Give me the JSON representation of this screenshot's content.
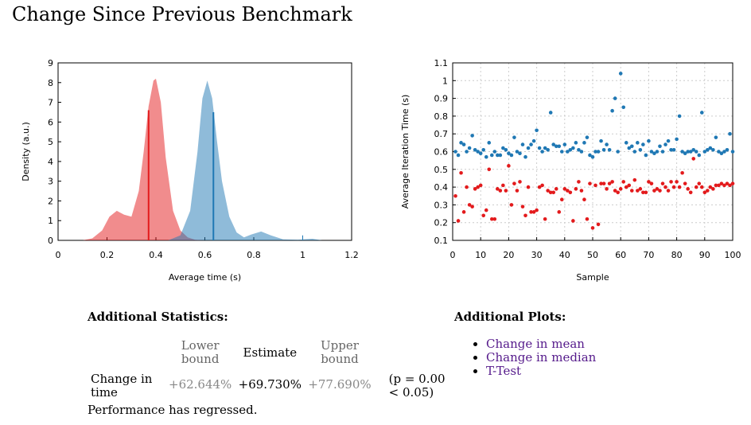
{
  "page": {
    "title": "Change Since Previous Benchmark"
  },
  "chart_data": [
    {
      "type": "area",
      "xlabel": "Average time (s)",
      "ylabel": "Density (a.u.)",
      "xlim": [
        0,
        1.2
      ],
      "ylim": [
        0,
        9
      ],
      "xticks": [
        "0",
        "0.2",
        "0.4",
        "0.6",
        "0.8",
        "1",
        "1.2"
      ],
      "yticks": [
        "0",
        "1",
        "2",
        "3",
        "4",
        "5",
        "6",
        "7",
        "8",
        "9"
      ],
      "grid": false,
      "series": [
        {
          "color": "#e31a1c",
          "x": [
            0.1,
            0.14,
            0.18,
            0.21,
            0.24,
            0.27,
            0.3,
            0.33,
            0.35,
            0.37,
            0.39,
            0.4,
            0.42,
            0.44,
            0.47,
            0.5,
            0.53,
            0.56,
            0.6
          ],
          "y": [
            0,
            0.1,
            0.5,
            1.2,
            1.5,
            1.3,
            1.2,
            2.5,
            4.5,
            6.8,
            8.1,
            8.2,
            7.0,
            4.2,
            1.5,
            0.5,
            0.15,
            0.03,
            0
          ],
          "marker_x": 0.37,
          "marker_y": 6.6
        },
        {
          "color": "#1f78b4",
          "x": [
            0.45,
            0.5,
            0.54,
            0.57,
            0.59,
            0.61,
            0.63,
            0.65,
            0.67,
            0.7,
            0.73,
            0.76,
            0.79,
            0.83,
            0.87,
            0.92,
            0.98,
            1.04,
            1.08
          ],
          "y": [
            0,
            0.25,
            1.5,
            4.5,
            7.2,
            8.1,
            7.2,
            5.0,
            3.0,
            1.2,
            0.4,
            0.15,
            0.3,
            0.45,
            0.25,
            0.05,
            0.03,
            0.08,
            0
          ],
          "marker_x": 0.635,
          "marker_y": 6.5
        }
      ]
    },
    {
      "type": "scatter",
      "xlabel": "Sample",
      "ylabel": "Average Iteration Time (s)",
      "xlim": [
        0,
        100
      ],
      "ylim": [
        0.1,
        1.1
      ],
      "xticks": [
        "0",
        "10",
        "20",
        "30",
        "40",
        "50",
        "60",
        "70",
        "80",
        "90",
        "100"
      ],
      "yticks": [
        "0.1",
        "0.2",
        "0.3",
        "0.4",
        "0.5",
        "0.6",
        "0.7",
        "0.8",
        "0.9",
        "1",
        "1.1"
      ],
      "grid": true,
      "series": [
        {
          "color": "#1f78b4",
          "x": [
            1,
            2,
            3,
            4,
            5,
            6,
            7,
            8,
            9,
            10,
            11,
            12,
            13,
            14,
            15,
            16,
            17,
            18,
            19,
            20,
            21,
            22,
            23,
            24,
            25,
            26,
            27,
            28,
            29,
            30,
            31,
            32,
            33,
            34,
            35,
            36,
            37,
            38,
            39,
            40,
            41,
            42,
            43,
            44,
            45,
            46,
            47,
            48,
            49,
            50,
            51,
            52,
            53,
            54,
            55,
            56,
            57,
            58,
            59,
            60,
            61,
            62,
            63,
            64,
            65,
            66,
            67,
            68,
            69,
            70,
            71,
            72,
            73,
            74,
            75,
            76,
            77,
            78,
            79,
            80,
            81,
            82,
            83,
            84,
            85,
            86,
            87,
            88,
            89,
            90,
            91,
            92,
            93,
            94,
            95,
            96,
            97,
            98,
            99,
            100
          ],
          "y": [
            0.6,
            0.58,
            0.65,
            0.64,
            0.6,
            0.62,
            0.69,
            0.61,
            0.6,
            0.59,
            0.61,
            0.57,
            0.65,
            0.58,
            0.6,
            0.58,
            0.58,
            0.62,
            0.61,
            0.59,
            0.58,
            0.68,
            0.6,
            0.59,
            0.64,
            0.57,
            0.62,
            0.64,
            0.66,
            0.72,
            0.62,
            0.6,
            0.62,
            0.61,
            0.82,
            0.64,
            0.63,
            0.63,
            0.6,
            0.64,
            0.6,
            0.61,
            0.62,
            0.65,
            0.61,
            0.6,
            0.65,
            0.68,
            0.58,
            0.57,
            0.6,
            0.6,
            0.66,
            0.61,
            0.64,
            0.61,
            0.83,
            0.9,
            0.6,
            1.04,
            0.85,
            0.65,
            0.62,
            0.63,
            0.6,
            0.65,
            0.61,
            0.64,
            0.58,
            0.66,
            0.6,
            0.59,
            0.6,
            0.63,
            0.6,
            0.64,
            0.66,
            0.61,
            0.61,
            0.67,
            0.8,
            0.6,
            0.59,
            0.6,
            0.6,
            0.61,
            0.6,
            0.58,
            0.82,
            0.6,
            0.61,
            0.62,
            0.61,
            0.68,
            0.6,
            0.59,
            0.6,
            0.61,
            0.7,
            0.6
          ]
        },
        {
          "color": "#e31a1c",
          "x": [
            1,
            2,
            3,
            4,
            5,
            6,
            7,
            8,
            9,
            10,
            11,
            12,
            13,
            14,
            15,
            16,
            17,
            18,
            19,
            20,
            21,
            22,
            23,
            24,
            25,
            26,
            27,
            28,
            29,
            30,
            31,
            32,
            33,
            34,
            35,
            36,
            37,
            38,
            39,
            40,
            41,
            42,
            43,
            44,
            45,
            46,
            47,
            48,
            49,
            50,
            51,
            52,
            53,
            54,
            55,
            56,
            57,
            58,
            59,
            60,
            61,
            62,
            63,
            64,
            65,
            66,
            67,
            68,
            69,
            70,
            71,
            72,
            73,
            74,
            75,
            76,
            77,
            78,
            79,
            80,
            81,
            82,
            83,
            84,
            85,
            86,
            87,
            88,
            89,
            90,
            91,
            92,
            93,
            94,
            95,
            96,
            97,
            98,
            99,
            100
          ],
          "y": [
            0.35,
            0.21,
            0.48,
            0.26,
            0.4,
            0.3,
            0.29,
            0.39,
            0.4,
            0.41,
            0.24,
            0.27,
            0.5,
            0.22,
            0.22,
            0.39,
            0.38,
            0.41,
            0.38,
            0.52,
            0.3,
            0.42,
            0.38,
            0.43,
            0.29,
            0.24,
            0.4,
            0.26,
            0.26,
            0.27,
            0.4,
            0.41,
            0.22,
            0.38,
            0.37,
            0.37,
            0.39,
            0.26,
            0.33,
            0.39,
            0.38,
            0.37,
            0.21,
            0.39,
            0.43,
            0.38,
            0.33,
            0.22,
            0.42,
            0.17,
            0.41,
            0.19,
            0.42,
            0.42,
            0.39,
            0.42,
            0.43,
            0.38,
            0.37,
            0.39,
            0.43,
            0.4,
            0.41,
            0.38,
            0.44,
            0.38,
            0.39,
            0.37,
            0.37,
            0.43,
            0.42,
            0.38,
            0.39,
            0.38,
            0.42,
            0.4,
            0.38,
            0.43,
            0.4,
            0.43,
            0.4,
            0.48,
            0.42,
            0.39,
            0.37,
            0.56,
            0.4,
            0.42,
            0.4,
            0.37,
            0.38,
            0.4,
            0.39,
            0.41,
            0.41,
            0.42,
            0.41,
            0.42,
            0.41,
            0.42
          ]
        }
      ]
    }
  ],
  "stats": {
    "heading": "Additional Statistics:",
    "lower_header": "Lower bound",
    "estimate_header": "Estimate",
    "upper_header": "Upper bound",
    "row_label": "Change in time",
    "lower": "+62.644%",
    "estimate": "+69.730%",
    "upper": "+77.690%",
    "pvalue": "(p = 0.00 < 0.05)",
    "verdict": "Performance has regressed."
  },
  "plots": {
    "heading": "Additional Plots:",
    "links": [
      "Change in mean",
      "Change in median",
      "T-Test"
    ]
  }
}
